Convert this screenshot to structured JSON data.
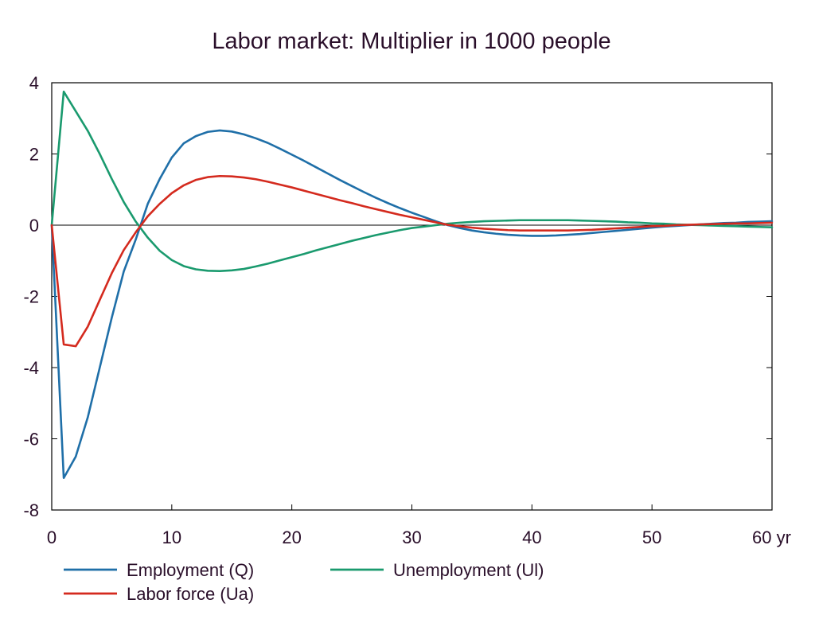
{
  "chart_data": {
    "type": "line",
    "title": "Labor market: Multiplier in 1000 people",
    "xlabel": "",
    "ylabel": "",
    "xlim": [
      0,
      60
    ],
    "ylim": [
      -8,
      4
    ],
    "x_ticks": [
      0,
      10,
      20,
      30,
      40,
      50,
      60
    ],
    "x_tick_labels": [
      "0",
      "10",
      "20",
      "30",
      "40",
      "50",
      "60 yr"
    ],
    "y_ticks": [
      4,
      2,
      0,
      -2,
      -4,
      -6,
      -8
    ],
    "y_tick_labels": [
      "4",
      "2",
      "0",
      "-2",
      "-4",
      "-6",
      "-8"
    ],
    "grid": false,
    "zero_line": true,
    "legend_position": "bottom-left",
    "x": [
      0,
      1,
      2,
      3,
      4,
      5,
      6,
      7,
      8,
      9,
      10,
      11,
      12,
      13,
      14,
      15,
      16,
      17,
      18,
      19,
      20,
      21,
      22,
      23,
      24,
      25,
      26,
      27,
      28,
      29,
      30,
      31,
      32,
      33,
      34,
      35,
      36,
      37,
      38,
      39,
      40,
      41,
      42,
      43,
      44,
      45,
      46,
      47,
      48,
      49,
      50,
      51,
      52,
      53,
      54,
      55,
      56,
      57,
      58,
      59,
      60
    ],
    "series": [
      {
        "name": "Employment (Q)",
        "color": "#1f6fa8",
        "values": [
          0,
          -7.1,
          -6.5,
          -5.4,
          -4.0,
          -2.6,
          -1.3,
          -0.4,
          0.6,
          1.3,
          1.9,
          2.3,
          2.5,
          2.62,
          2.66,
          2.63,
          2.55,
          2.44,
          2.31,
          2.15,
          1.98,
          1.81,
          1.63,
          1.45,
          1.27,
          1.1,
          0.93,
          0.77,
          0.62,
          0.48,
          0.35,
          0.23,
          0.11,
          0.0,
          -0.08,
          -0.15,
          -0.2,
          -0.24,
          -0.27,
          -0.29,
          -0.3,
          -0.3,
          -0.29,
          -0.27,
          -0.25,
          -0.22,
          -0.19,
          -0.16,
          -0.13,
          -0.1,
          -0.07,
          -0.04,
          -0.02,
          0.0,
          0.02,
          0.04,
          0.06,
          0.07,
          0.09,
          0.1,
          0.11
        ]
      },
      {
        "name": "Unemployment (Ul)",
        "color": "#1a9a6e",
        "values": [
          0,
          3.75,
          3.2,
          2.65,
          2.0,
          1.3,
          0.65,
          0.1,
          -0.35,
          -0.72,
          -0.98,
          -1.15,
          -1.24,
          -1.28,
          -1.29,
          -1.27,
          -1.23,
          -1.16,
          -1.08,
          -0.99,
          -0.9,
          -0.81,
          -0.71,
          -0.62,
          -0.53,
          -0.44,
          -0.36,
          -0.28,
          -0.21,
          -0.14,
          -0.08,
          -0.04,
          0.0,
          0.04,
          0.07,
          0.09,
          0.11,
          0.12,
          0.13,
          0.14,
          0.14,
          0.14,
          0.14,
          0.14,
          0.13,
          0.12,
          0.11,
          0.1,
          0.08,
          0.07,
          0.05,
          0.04,
          0.02,
          0.01,
          0.0,
          -0.01,
          -0.02,
          -0.03,
          -0.04,
          -0.05,
          -0.06
        ]
      },
      {
        "name": "Labor force (Ua)",
        "color": "#d42a1e",
        "values": [
          0,
          -3.35,
          -3.4,
          -2.85,
          -2.1,
          -1.35,
          -0.7,
          -0.2,
          0.25,
          0.6,
          0.9,
          1.12,
          1.27,
          1.35,
          1.38,
          1.37,
          1.34,
          1.29,
          1.22,
          1.14,
          1.06,
          0.97,
          0.88,
          0.79,
          0.7,
          0.62,
          0.53,
          0.45,
          0.37,
          0.29,
          0.22,
          0.15,
          0.08,
          0.01,
          -0.03,
          -0.07,
          -0.1,
          -0.12,
          -0.14,
          -0.15,
          -0.15,
          -0.15,
          -0.15,
          -0.15,
          -0.14,
          -0.13,
          -0.11,
          -0.09,
          -0.07,
          -0.05,
          -0.03,
          -0.02,
          0.0,
          0.01,
          0.02,
          0.03,
          0.04,
          0.05,
          0.05,
          0.06,
          0.07
        ]
      }
    ],
    "legend_order": [
      0,
      1,
      2
    ]
  }
}
